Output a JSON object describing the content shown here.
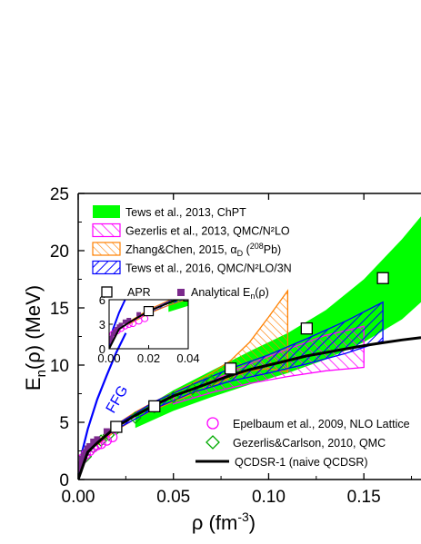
{
  "chart_data": {
    "type": "line",
    "xlabel_main": "ρ (fm",
    "xlabel_exp": "-3",
    "xlabel_close": ")",
    "ylabel_main": "E",
    "ylabel_sub": "n",
    "ylabel_rest": "(ρ) (MeV)",
    "xlim": [
      0,
      0.18
    ],
    "ylim": [
      0,
      25
    ],
    "xticks": [
      "0.00",
      "0.05",
      "0.10",
      "0.15"
    ],
    "xtick_values": [
      0,
      0.05,
      0.1,
      0.15
    ],
    "yticks": [
      "0",
      "5",
      "10",
      "15",
      "20",
      "25"
    ],
    "ytick_values": [
      0,
      5,
      10,
      15,
      20,
      25
    ],
    "ffg_label": "FFG",
    "legend_top": [
      {
        "label": "Tews et al., 2013, ChPT",
        "style": "green-fill"
      },
      {
        "label": "Gezerlis et al., 2013, QMC/N²LO",
        "style": "magenta-hatch"
      },
      {
        "label": "Zhang&Chen, 2015, α",
        "sub": "D",
        "tail": " (",
        "sup": "208",
        "tail2": "Pb)",
        "style": "orange-hatch"
      },
      {
        "label": "Tews et al., 2016, QMC/N²LO/3N",
        "style": "blue-hatch"
      }
    ],
    "legend_mid": [
      {
        "label": "APR",
        "style": "open-square"
      },
      {
        "label": "Analytical E",
        "sub": "n",
        "tail": "(ρ)",
        "style": "purple-square"
      }
    ],
    "legend_bottom": [
      {
        "label": "Epelbaum et al., 2009, NLO Lattice",
        "style": "magenta-circle"
      },
      {
        "label": "Gezerlis&Carlson, 2010, QMC",
        "style": "green-diamond"
      },
      {
        "label": "QCDSR-1 (naive QCDSR)",
        "style": "black-line"
      }
    ],
    "series": [
      {
        "name": "Tews et al., 2013, ChPT",
        "x": [
          0.03,
          0.05,
          0.07,
          0.09,
          0.11,
          0.13,
          0.15,
          0.17,
          0.18
        ],
        "lower": [
          4.5,
          6.0,
          7.2,
          8.3,
          9.3,
          10.5,
          12.0,
          14.0,
          15.5
        ],
        "upper": [
          5.8,
          7.8,
          9.5,
          11.2,
          12.8,
          14.8,
          17.5,
          21.0,
          23.0
        ]
      },
      {
        "name": "Gezerlis et al., 2013, QMC/N²LO",
        "x": [
          0.05,
          0.07,
          0.09,
          0.11,
          0.13,
          0.15
        ],
        "lower": [
          6.6,
          7.6,
          8.4,
          9.0,
          9.5,
          9.8
        ],
        "upper": [
          7.2,
          8.6,
          10.1,
          11.4,
          12.6,
          13.4
        ]
      },
      {
        "name": "Zhang&Chen, 2015",
        "x": [
          0.01,
          0.02,
          0.03,
          0.04,
          0.05,
          0.06,
          0.07,
          0.08,
          0.09,
          0.1,
          0.11
        ],
        "lower": [
          3.0,
          4.3,
          5.3,
          6.1,
          6.8,
          7.5,
          8.2,
          8.9,
          9.5,
          9.7,
          9.4
        ],
        "upper": [
          3.3,
          4.8,
          5.9,
          6.8,
          7.6,
          8.4,
          9.3,
          10.4,
          12.0,
          14.2,
          16.5
        ]
      },
      {
        "name": "Tews et al., 2016, QMC/N²LO/3N",
        "x": [
          0.02,
          0.04,
          0.06,
          0.08,
          0.1,
          0.12,
          0.14,
          0.16
        ],
        "lower": [
          4.4,
          6.2,
          7.6,
          8.6,
          9.3,
          10.1,
          11.0,
          12.1
        ],
        "upper": [
          4.8,
          6.8,
          8.3,
          9.7,
          10.9,
          12.3,
          13.8,
          15.5
        ]
      },
      {
        "name": "APR",
        "x": [
          0.02,
          0.04,
          0.08,
          0.12,
          0.16
        ],
        "y": [
          4.6,
          6.4,
          9.7,
          13.2,
          17.6
        ]
      },
      {
        "name": "Analytical En(ρ)",
        "x": [
          0.0005,
          0.001,
          0.002,
          0.003,
          0.004,
          0.005,
          0.006,
          0.008,
          0.01,
          0.015,
          0.02
        ],
        "y": [
          0.9,
          1.3,
          1.8,
          2.1,
          2.4,
          2.7,
          2.9,
          3.3,
          3.5,
          4.2,
          4.8
        ]
      },
      {
        "name": "Epelbaum et al., 2009, NLO Lattice",
        "x": [
          0.002,
          0.004,
          0.006,
          0.008,
          0.01,
          0.012,
          0.015,
          0.018
        ],
        "y": [
          1.8,
          2.2,
          2.5,
          2.8,
          3.0,
          3.1,
          3.4,
          3.7
        ]
      },
      {
        "name": "Gezerlis&Carlson, 2010, QMC",
        "x": [
          0.004,
          0.008,
          0.012,
          0.016,
          0.02,
          0.03,
          0.04,
          0.05,
          0.06,
          0.07,
          0.08
        ],
        "y": [
          2.0,
          2.8,
          3.4,
          3.9,
          4.4,
          5.4,
          6.3,
          7.2,
          7.9,
          8.6,
          9.3
        ]
      },
      {
        "name": "QCDSR-1 (naive QCDSR)",
        "x": [
          0,
          0.005,
          0.01,
          0.02,
          0.03,
          0.04,
          0.05,
          0.06,
          0.07,
          0.08,
          0.09,
          0.1,
          0.11,
          0.12,
          0.13,
          0.14,
          0.15,
          0.16,
          0.17,
          0.18
        ],
        "y": [
          0,
          2.4,
          3.2,
          4.6,
          5.6,
          6.5,
          7.3,
          7.9,
          8.5,
          9.1,
          9.6,
          10.0,
          10.4,
          10.8,
          11.1,
          11.4,
          11.7,
          11.95,
          12.2,
          12.4
        ]
      },
      {
        "name": "FFG",
        "x": [
          0,
          0.002,
          0.005,
          0.01,
          0.015,
          0.02,
          0.025
        ],
        "y": [
          0,
          2.4,
          4.4,
          7.0,
          9.1,
          11.1,
          12.8
        ]
      }
    ],
    "inset": {
      "xlim": [
        0,
        0.04
      ],
      "ylim": [
        0,
        6
      ],
      "xticks": [
        "0.00",
        "0.02",
        "0.04"
      ],
      "xtick_values": [
        0,
        0.02,
        0.04
      ],
      "yticks": [
        "0",
        "3",
        "6"
      ],
      "ytick_values": [
        0,
        3,
        6
      ]
    }
  }
}
